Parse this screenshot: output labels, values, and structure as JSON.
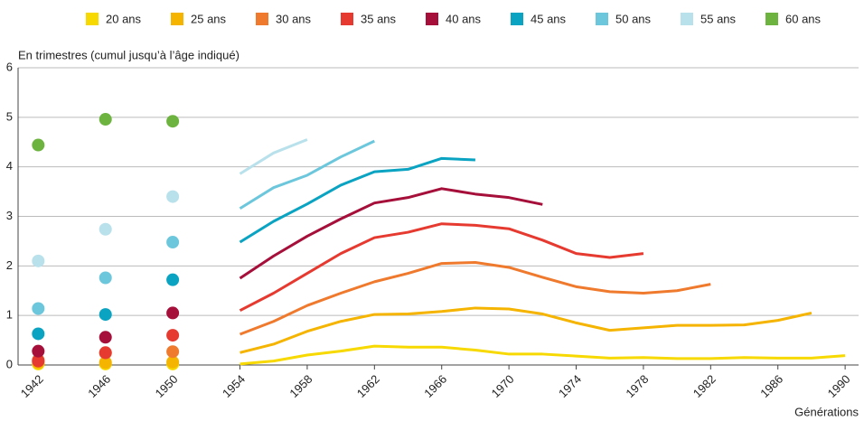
{
  "chart_data": {
    "type": "line",
    "ylabel": "En trimestres (cumul jusqu’à l’âge indiqué)",
    "xlabel": "Générations",
    "dots_x": [
      1942,
      1946,
      1950
    ],
    "x": [
      1954,
      1956,
      1958,
      1960,
      1962,
      1964,
      1966,
      1968,
      1970,
      1972,
      1974,
      1976,
      1978,
      1980,
      1982,
      1984,
      1986,
      1988,
      1990
    ],
    "xlim": [
      1940.8,
      1990.8
    ],
    "xticks": [
      1942,
      1946,
      1950,
      1954,
      1958,
      1962,
      1966,
      1970,
      1974,
      1978,
      1982,
      1986,
      1990
    ],
    "ylim": [
      0,
      6
    ],
    "yticks": [
      0,
      1,
      2,
      3,
      4,
      5,
      6
    ],
    "grid": true,
    "series": [
      {
        "name": "20 ans",
        "color": "#f7d900",
        "dot_values": [
          0.02,
          0.02,
          0.02
        ],
        "values": [
          0.02,
          0.08,
          0.2,
          0.28,
          0.38,
          0.36,
          0.36,
          0.3,
          0.22,
          0.22,
          0.18,
          0.14,
          0.15,
          0.13,
          0.13,
          0.15,
          0.14,
          0.14,
          0.19
        ]
      },
      {
        "name": "25 ans",
        "color": "#f5b400",
        "dot_values": [
          0.05,
          0.05,
          0.06
        ],
        "values": [
          0.25,
          0.42,
          0.68,
          0.88,
          1.02,
          1.03,
          1.08,
          1.15,
          1.13,
          1.03,
          0.85,
          0.7,
          0.75,
          0.8,
          0.8,
          0.81,
          0.9,
          1.05,
          null
        ]
      },
      {
        "name": "30 ans",
        "color": "#ef7a2e",
        "dot_values": [
          0.1,
          0.24,
          0.27
        ],
        "values": [
          0.62,
          0.88,
          1.2,
          1.45,
          1.68,
          1.85,
          2.05,
          2.07,
          1.97,
          1.77,
          1.58,
          1.48,
          1.45,
          1.5,
          1.63,
          null,
          null,
          null,
          null
        ]
      },
      {
        "name": "35 ans",
        "color": "#e63a30",
        "dot_values": [
          0.08,
          0.25,
          0.6
        ],
        "values": [
          1.1,
          1.45,
          1.85,
          2.25,
          2.57,
          2.68,
          2.85,
          2.82,
          2.75,
          2.52,
          2.25,
          2.17,
          2.25,
          null,
          null,
          null,
          null,
          null,
          null
        ]
      },
      {
        "name": "40 ans",
        "color": "#a50f3a",
        "dot_values": [
          0.28,
          0.56,
          1.05
        ],
        "values": [
          1.75,
          2.2,
          2.6,
          2.95,
          3.27,
          3.38,
          3.56,
          3.45,
          3.38,
          3.24,
          null,
          null,
          null,
          null,
          null,
          null,
          null,
          null,
          null
        ]
      },
      {
        "name": "45 ans",
        "color": "#0aa3c2",
        "dot_values": [
          0.63,
          1.02,
          1.72
        ],
        "values": [
          2.48,
          2.9,
          3.25,
          3.63,
          3.9,
          3.95,
          4.17,
          4.14,
          null,
          null,
          null,
          null,
          null,
          null,
          null,
          null,
          null,
          null,
          null
        ]
      },
      {
        "name": "50 ans",
        "color": "#6cc7dc",
        "dot_values": [
          1.14,
          1.76,
          2.48
        ],
        "values": [
          3.16,
          3.58,
          3.83,
          4.2,
          4.52,
          null,
          null,
          null,
          null,
          null,
          null,
          null,
          null,
          null,
          null,
          null,
          null,
          null,
          null
        ]
      },
      {
        "name": "55 ans",
        "color": "#b9e1ec",
        "dot_values": [
          2.1,
          2.74,
          3.4
        ],
        "values": [
          3.86,
          4.28,
          4.55,
          null,
          null,
          null,
          null,
          null,
          null,
          null,
          null,
          null,
          null,
          null,
          null,
          null,
          null,
          null,
          null
        ]
      },
      {
        "name": "60 ans",
        "color": "#6db33f",
        "dot_values": [
          4.44,
          4.96,
          4.92
        ],
        "values": [
          null,
          null,
          null,
          null,
          null,
          null,
          null,
          null,
          null,
          null,
          null,
          null,
          null,
          null,
          null,
          null,
          null,
          null,
          null
        ]
      }
    ]
  }
}
